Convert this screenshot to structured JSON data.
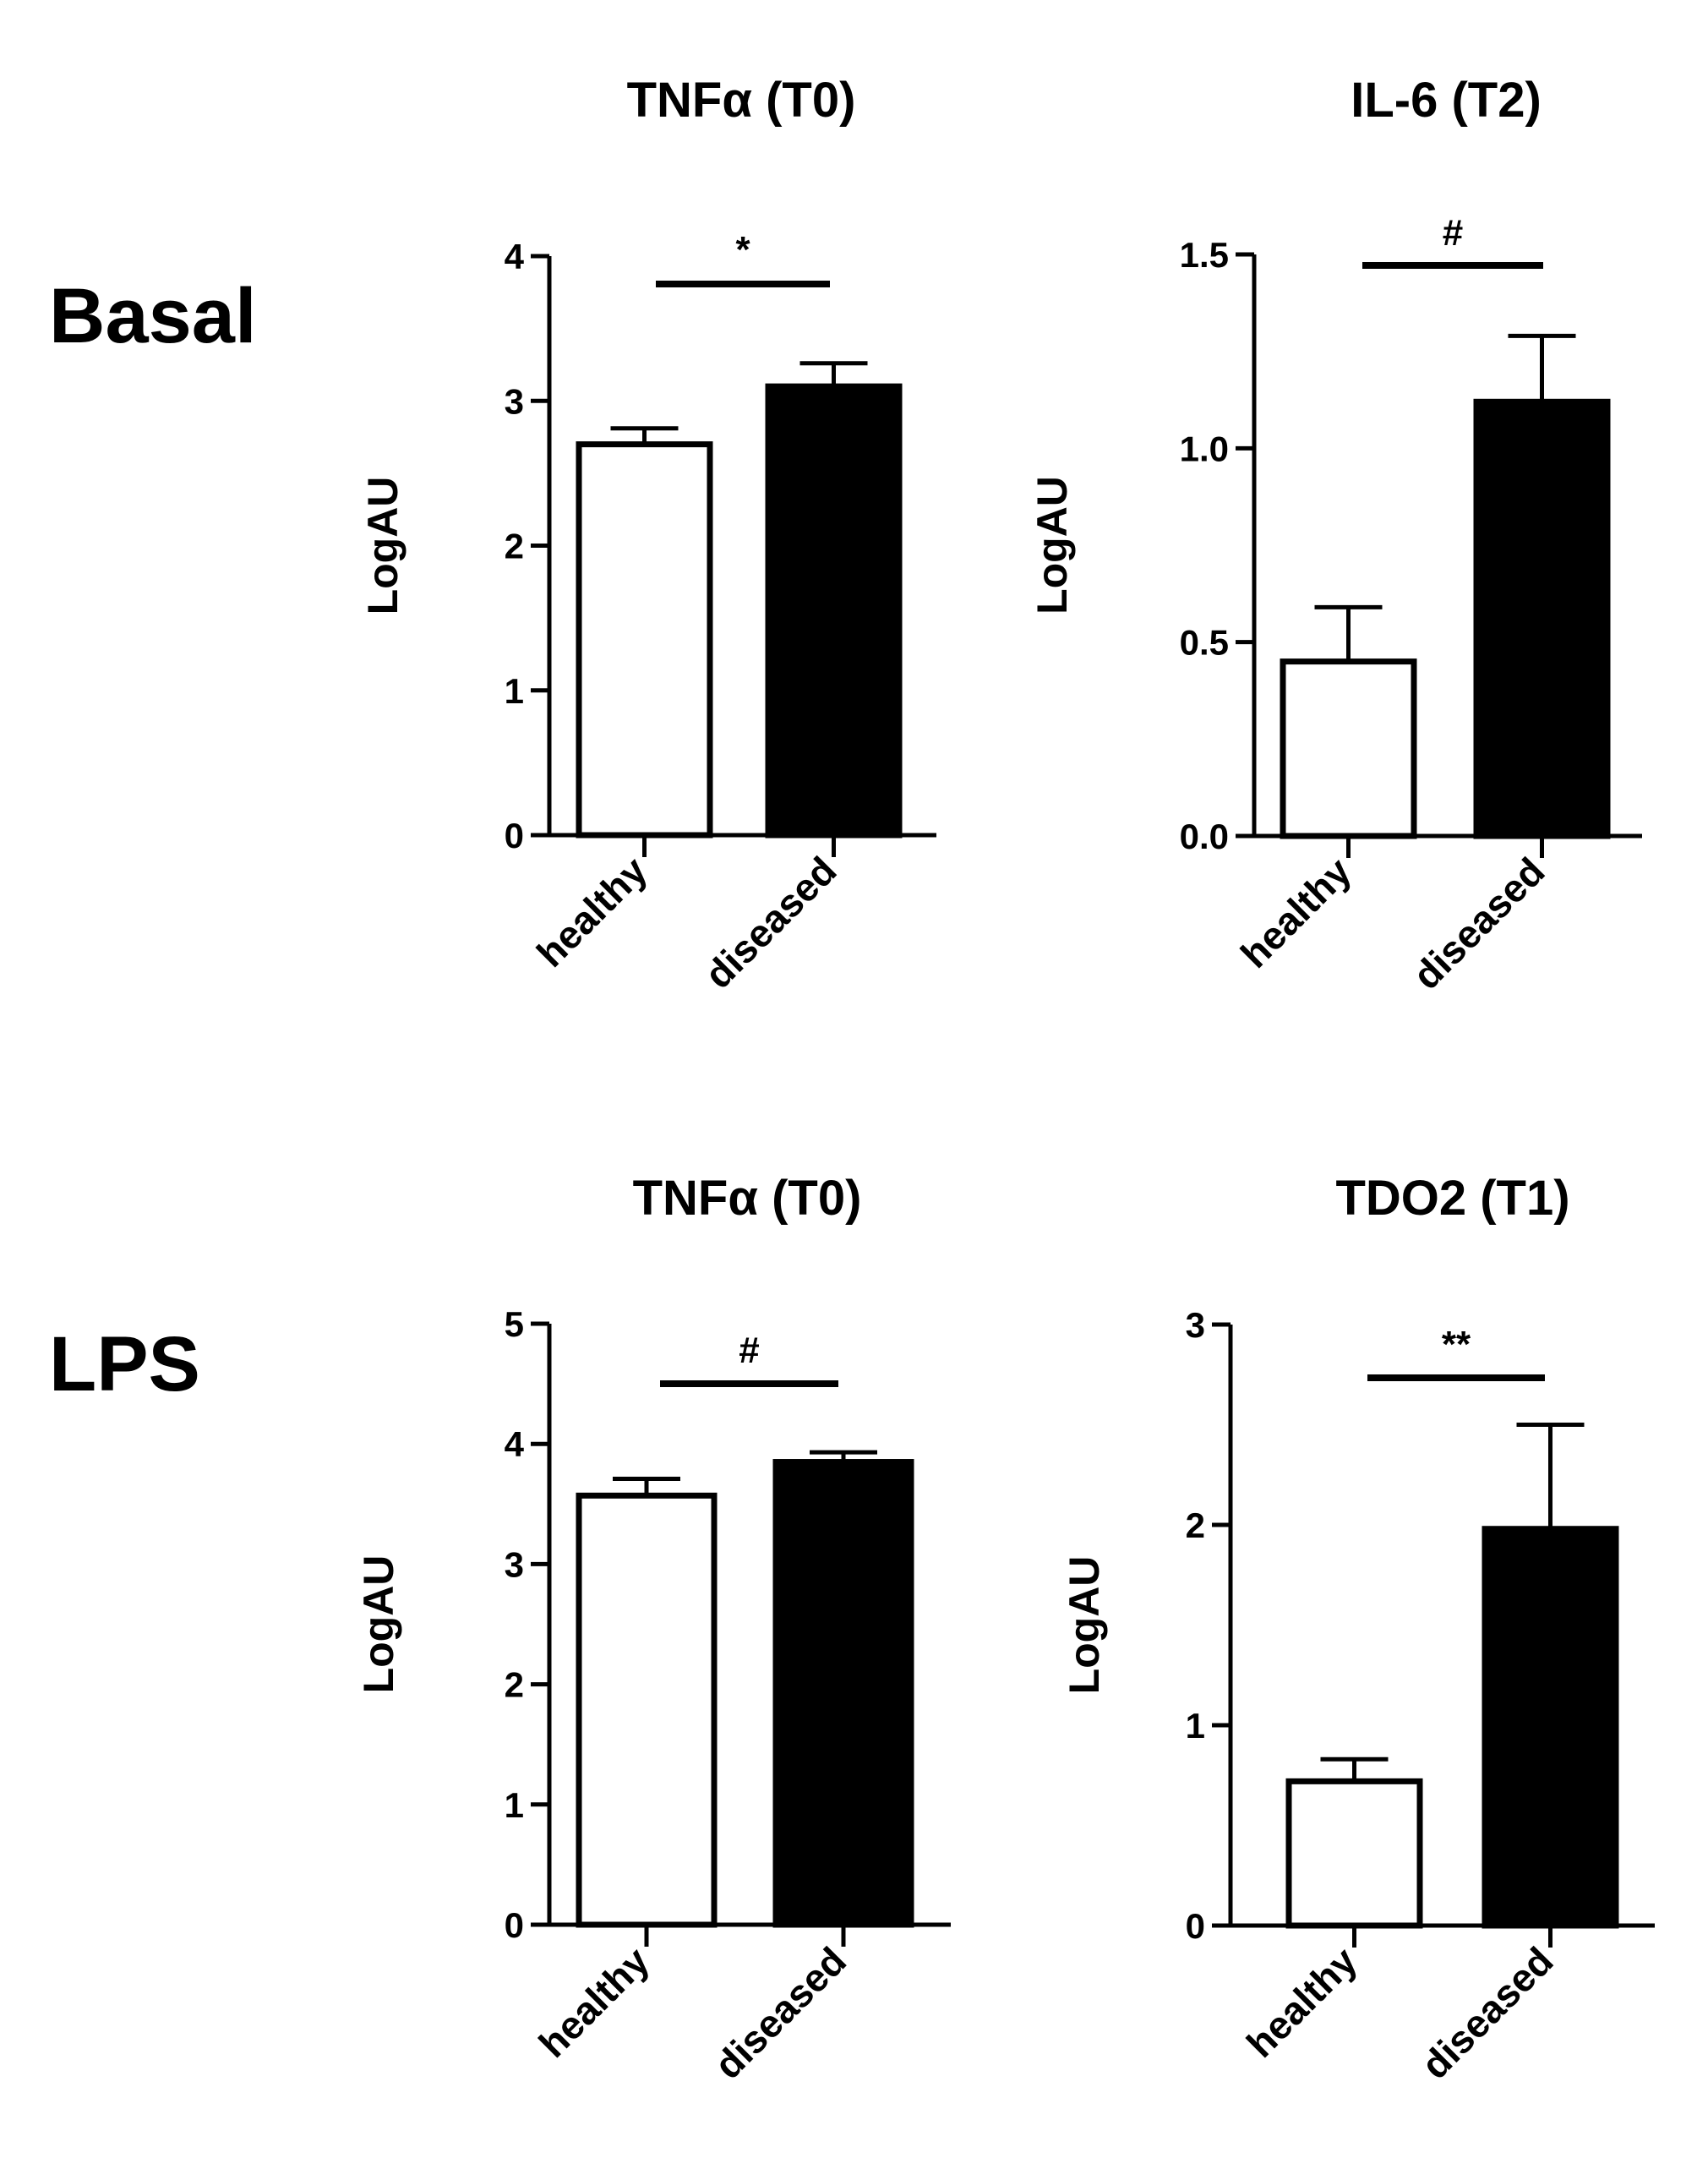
{
  "rows": [
    {
      "label": "Basal"
    },
    {
      "label": "LPS"
    }
  ],
  "chart_data": [
    {
      "type": "bar",
      "title": "TNFα (T0)",
      "ylabel": "LogAU",
      "categories": [
        "healthy",
        "diseased"
      ],
      "values": [
        2.7,
        3.1
      ],
      "errors": [
        0.11,
        0.16
      ],
      "ylim": [
        0,
        4
      ],
      "yticks": [
        0,
        1,
        2,
        3,
        4
      ],
      "ytick_labels": [
        "0",
        "1",
        "2",
        "3",
        "4"
      ],
      "colors": [
        "#ffffff",
        "#000000"
      ],
      "significance": "*"
    },
    {
      "type": "bar",
      "title": "IL-6 (T2)",
      "ylabel": "LogAU",
      "categories": [
        "healthy",
        "diseased"
      ],
      "values": [
        0.45,
        1.12
      ],
      "errors": [
        0.14,
        0.17
      ],
      "ylim": [
        0,
        1.5
      ],
      "yticks": [
        0,
        0.5,
        1.0,
        1.5
      ],
      "ytick_labels": [
        "0.0",
        "0.5",
        "1.0",
        "1.5"
      ],
      "colors": [
        "#ffffff",
        "#000000"
      ],
      "significance": "#"
    },
    {
      "type": "bar",
      "title": "TNFα (T0)",
      "ylabel": "LogAU",
      "categories": [
        "healthy",
        "diseased"
      ],
      "values": [
        3.57,
        3.85
      ],
      "errors": [
        0.14,
        0.08
      ],
      "ylim": [
        0,
        5
      ],
      "yticks": [
        0,
        1,
        2,
        3,
        4,
        5
      ],
      "ytick_labels": [
        "0",
        "1",
        "2",
        "3",
        "4",
        "5"
      ],
      "colors": [
        "#ffffff",
        "#000000"
      ],
      "significance": "#"
    },
    {
      "type": "bar",
      "title": "TDO2 (T1)",
      "ylabel": "LogAU",
      "categories": [
        "healthy",
        "diseased"
      ],
      "values": [
        0.72,
        1.98
      ],
      "errors": [
        0.11,
        0.52
      ],
      "ylim": [
        0,
        3
      ],
      "yticks": [
        0,
        1,
        2,
        3
      ],
      "ytick_labels": [
        "0",
        "1",
        "2",
        "3"
      ],
      "colors": [
        "#ffffff",
        "#000000"
      ],
      "significance": "**"
    }
  ]
}
